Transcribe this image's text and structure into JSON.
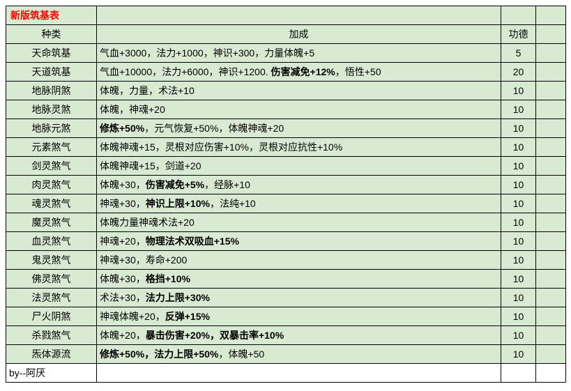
{
  "title": "新版筑基表",
  "headers": {
    "type": "种类",
    "bonus": "加成",
    "merit": "功德"
  },
  "rows": [
    {
      "type": "天命筑基",
      "segments": [
        [
          "气血+3000，法力+1000，神识+300，力量体魄+5",
          false
        ]
      ],
      "merit": "5"
    },
    {
      "type": "天道筑基",
      "segments": [
        [
          "气血+10000，法力+6000，神识+1200. ",
          false
        ],
        [
          "伤害减免+12%",
          true
        ],
        [
          "，悟性+50",
          false
        ]
      ],
      "merit": "20"
    },
    {
      "type": "地脉阴煞",
      "segments": [
        [
          "体魄，力量，术法+10",
          false
        ]
      ],
      "merit": "10"
    },
    {
      "type": "地脉灵煞",
      "segments": [
        [
          "体魄，神魂+20",
          false
        ]
      ],
      "merit": "10"
    },
    {
      "type": "地脉元煞",
      "segments": [
        [
          "修炼+50%",
          true
        ],
        [
          "，元气恢复+50%，体魄神魂+20",
          false
        ]
      ],
      "merit": "10"
    },
    {
      "type": "元素煞气",
      "segments": [
        [
          "体魄神魂+15，灵根对应伤害+10%，灵根对应抗性+10%",
          false
        ]
      ],
      "merit": "10"
    },
    {
      "type": "剑灵煞气",
      "segments": [
        [
          "体魄神魂+15，剑道+20",
          false
        ]
      ],
      "merit": "10"
    },
    {
      "type": "肉灵煞气",
      "segments": [
        [
          "体魄+30，",
          false
        ],
        [
          "伤害减免+5%",
          true
        ],
        [
          "，经脉+10",
          false
        ]
      ],
      "merit": "10"
    },
    {
      "type": "魂灵煞气",
      "segments": [
        [
          "神魂+30，",
          false
        ],
        [
          "神识上限+10%",
          true
        ],
        [
          "，法纯+10",
          false
        ]
      ],
      "merit": "10"
    },
    {
      "type": "魔灵煞气",
      "segments": [
        [
          "体魄力量神魂术法+20",
          false
        ]
      ],
      "merit": "10"
    },
    {
      "type": "血灵煞气",
      "segments": [
        [
          "神魂+20，",
          false
        ],
        [
          "物理法术双吸血+15%",
          true
        ]
      ],
      "merit": "10"
    },
    {
      "type": "鬼灵煞气",
      "segments": [
        [
          "神魂+30，寿命+200",
          false
        ]
      ],
      "merit": "10"
    },
    {
      "type": "佛灵煞气",
      "segments": [
        [
          "体魄+30，",
          false
        ],
        [
          "格挡+10%",
          true
        ]
      ],
      "merit": "10"
    },
    {
      "type": "法灵煞气",
      "segments": [
        [
          "术法+30，",
          false
        ],
        [
          "法力上限+30%",
          true
        ]
      ],
      "merit": "10"
    },
    {
      "type": "尸火阴煞",
      "segments": [
        [
          "神魂体魄+20，",
          false
        ],
        [
          "反弹+15%",
          true
        ]
      ],
      "merit": "10"
    },
    {
      "type": "杀戮煞气",
      "segments": [
        [
          "体魄+20，",
          false
        ],
        [
          "暴击伤害+20%，双暴击率+10%",
          true
        ]
      ],
      "merit": "10"
    },
    {
      "type": "炁体源流",
      "segments": [
        [
          "修炼+50%，法力上限+50%",
          true
        ],
        [
          "，体魄+50",
          false
        ]
      ],
      "merit": "10"
    }
  ],
  "footer": "by--阿厌",
  "colors": {
    "rowBg": "#d9ead3",
    "border": "#000000",
    "titleColor": "#ff0000"
  }
}
